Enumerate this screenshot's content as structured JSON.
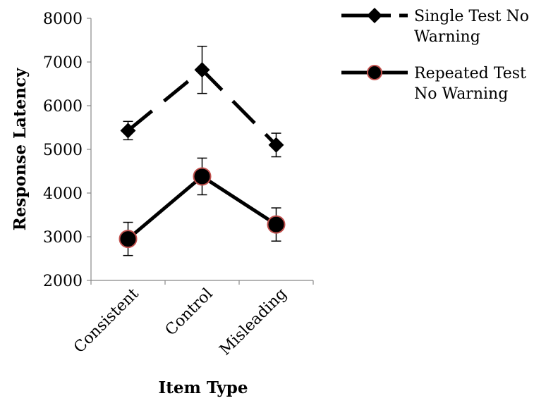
{
  "chart_data": {
    "type": "line",
    "title": "",
    "xlabel": "Item Type",
    "ylabel": "Response Latency",
    "categories": [
      "Consistent",
      "Control",
      "Misleading"
    ],
    "ylim": [
      2000,
      8000
    ],
    "yticks": [
      2000,
      3000,
      4000,
      5000,
      6000,
      7000,
      8000
    ],
    "grid": false,
    "legend_position": "top-right",
    "series": [
      {
        "name": "Single Test No Warning",
        "legend_lines": [
          "Single Test No",
          "Warning"
        ],
        "values": [
          5430,
          6820,
          5100
        ],
        "error": [
          210,
          540,
          270
        ],
        "line_style": "dashed",
        "marker": "diamond",
        "color": "#000000",
        "marker_fill": "#000000"
      },
      {
        "name": "Repeated Test No Warning",
        "legend_lines": [
          "Repeated Test",
          "No Warning"
        ],
        "values": [
          2950,
          4380,
          3280
        ],
        "error": [
          380,
          420,
          380
        ],
        "line_style": "solid",
        "marker": "circle",
        "color": "#000000",
        "marker_fill": "#000000",
        "marker_edge": "#c0504d"
      }
    ]
  }
}
